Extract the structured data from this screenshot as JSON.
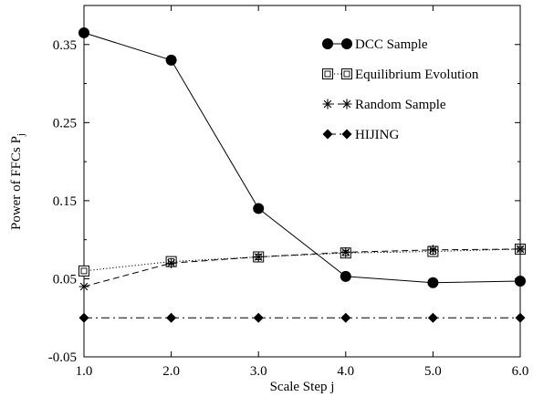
{
  "chart_data": {
    "type": "line",
    "xlabel": "Scale Step j",
    "ylabel_main": "Power of FFCs P",
    "ylabel_sub": "j",
    "xlim": [
      1.0,
      6.0
    ],
    "ylim": [
      -0.05,
      0.4
    ],
    "xticks": [
      1.0,
      2.0,
      3.0,
      4.0,
      5.0,
      6.0
    ],
    "xtick_labels": [
      "1.0",
      "2.0",
      "3.0",
      "4.0",
      "5.0",
      "6.0"
    ],
    "yticks": [
      -0.05,
      0.05,
      0.15,
      0.25,
      0.35
    ],
    "ytick_labels": [
      "-0.05",
      "0.05",
      "0.15",
      "0.25",
      "0.35"
    ],
    "legend_position": "top-right",
    "x": [
      1,
      2,
      3,
      4,
      5,
      6
    ],
    "series": [
      {
        "name": "DCC Sample",
        "marker": "circle",
        "dash": "solid",
        "values": [
          0.365,
          0.33,
          0.14,
          0.053,
          0.045,
          0.047
        ]
      },
      {
        "name": "Equilibrium Evolution",
        "marker": "boxed-square",
        "dash": "dotted",
        "values": [
          0.06,
          0.072,
          0.078,
          0.083,
          0.085,
          0.088
        ]
      },
      {
        "name": "Random Sample",
        "marker": "asterisk",
        "dash": "dashed",
        "values": [
          0.04,
          0.07,
          0.078,
          0.084,
          0.087,
          0.088
        ]
      },
      {
        "name": "HIJING",
        "marker": "diamond",
        "dash": "dashdot",
        "values": [
          0.0,
          0.0,
          0.0,
          0.0,
          0.0,
          0.0
        ]
      }
    ]
  }
}
